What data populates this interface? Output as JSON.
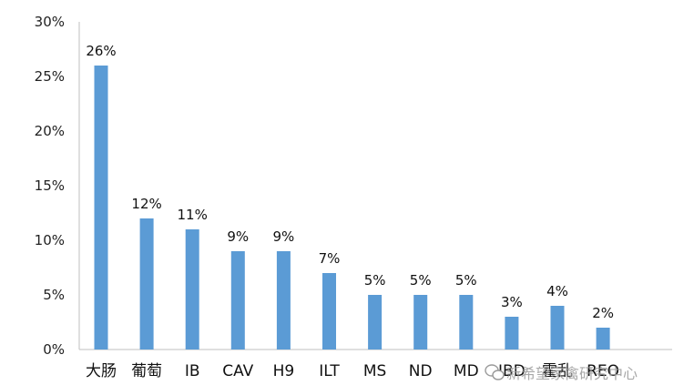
{
  "chart_data": {
    "type": "bar",
    "categories": [
      "大肠",
      "葡萄",
      "IB",
      "CAV",
      "H9",
      "ILT",
      "MS",
      "ND",
      "MD",
      "IBD",
      "霍乱",
      "REO"
    ],
    "values": [
      26,
      12,
      11,
      9,
      9,
      7,
      5,
      5,
      5,
      3,
      4,
      2
    ],
    "data_labels": [
      "26%",
      "12%",
      "11%",
      "9%",
      "9%",
      "7%",
      "5%",
      "5%",
      "5%",
      "3%",
      "4%",
      "2%"
    ],
    "y_ticks": [
      "0%",
      "5%",
      "10%",
      "15%",
      "20%",
      "25%",
      "30%"
    ],
    "ylim": [
      0,
      30
    ],
    "grid": false,
    "bar_color": "#5B9BD5",
    "title": "",
    "xlabel": "",
    "ylabel": ""
  },
  "watermark": {
    "text": "新希望家禽研究中心",
    "icon": "wechat-icon"
  }
}
